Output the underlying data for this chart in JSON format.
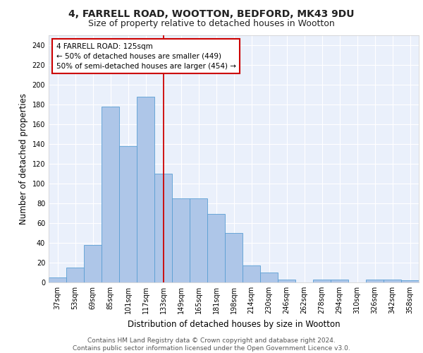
{
  "title1": "4, FARRELL ROAD, WOOTTON, BEDFORD, MK43 9DU",
  "title2": "Size of property relative to detached houses in Wootton",
  "xlabel": "Distribution of detached houses by size in Wootton",
  "ylabel": "Number of detached properties",
  "categories": [
    "37sqm",
    "53sqm",
    "69sqm",
    "85sqm",
    "101sqm",
    "117sqm",
    "133sqm",
    "149sqm",
    "165sqm",
    "181sqm",
    "198sqm",
    "214sqm",
    "230sqm",
    "246sqm",
    "262sqm",
    "278sqm",
    "294sqm",
    "310sqm",
    "326sqm",
    "342sqm",
    "358sqm"
  ],
  "values": [
    5,
    15,
    38,
    178,
    138,
    188,
    110,
    85,
    85,
    69,
    50,
    17,
    10,
    3,
    0,
    3,
    3,
    0,
    3,
    3,
    2
  ],
  "bar_color": "#aec6e8",
  "bar_edge_color": "#5a9fd4",
  "background_color": "#eaf0fb",
  "grid_color": "#ffffff",
  "red_line_index": 6,
  "annotation_text": "4 FARRELL ROAD: 125sqm\n← 50% of detached houses are smaller (449)\n50% of semi-detached houses are larger (454) →",
  "annotation_box_color": "#ffffff",
  "annotation_border_color": "#cc0000",
  "ylim": [
    0,
    250
  ],
  "yticks": [
    0,
    20,
    40,
    60,
    80,
    100,
    120,
    140,
    160,
    180,
    200,
    220,
    240
  ],
  "footer_text": "Contains HM Land Registry data © Crown copyright and database right 2024.\nContains public sector information licensed under the Open Government Licence v3.0.",
  "title1_fontsize": 10,
  "title2_fontsize": 9,
  "xlabel_fontsize": 8.5,
  "ylabel_fontsize": 8.5,
  "tick_fontsize": 7,
  "footer_fontsize": 6.5,
  "annot_fontsize": 7.5
}
